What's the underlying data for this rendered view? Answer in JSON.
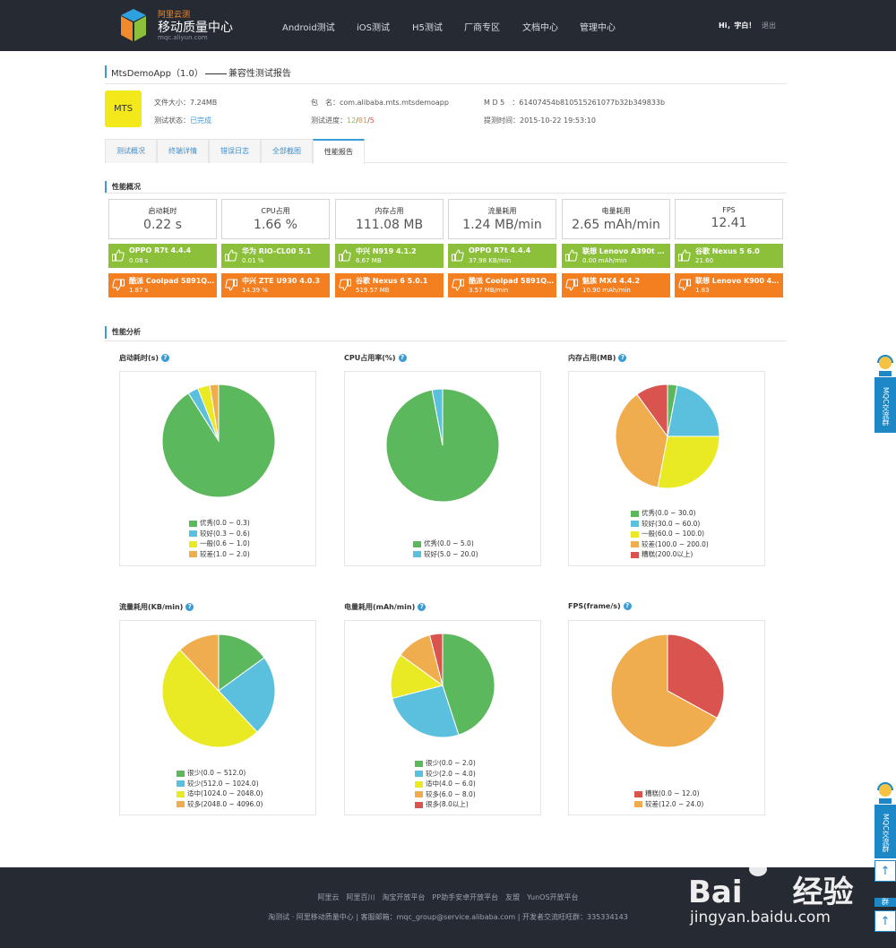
{
  "header": {
    "brand_small": "阿里云测",
    "brand": "移动质量中心",
    "brand_url": "mqc.aliyun.com",
    "nav": [
      "Android测试",
      "iOS测试",
      "H5测试",
      "厂商专区",
      "文档中心",
      "管理中心"
    ],
    "user": "Hi，字白！",
    "logout": "退出"
  },
  "report": {
    "app": "MtsDemoApp（1.0）",
    "suffix": "兼容性测试报告",
    "icon": "MTS",
    "size_label": "文件大小：",
    "size": "7.24MB",
    "status_label": "测试状态：",
    "status": "已完成",
    "pkg_label": "包　名：",
    "pkg": "com.alibaba.mts.mtsdemoapp",
    "progress_label": "测试进度：",
    "progress_a": "12",
    "progress_b": "81",
    "progress_c": "5",
    "slash": "/",
    "md5_label": "M D 5　：",
    "md5": "61407454b810515261077b32b349833b",
    "time_label": "提测时间：",
    "time": "2015-10-22 19:53:10"
  },
  "tabs": [
    "测试概况",
    "终端详情",
    "错误日志",
    "全部截图",
    "性能报告"
  ],
  "sections": {
    "overview": "性能概况",
    "analysis": "性能分析"
  },
  "metrics": [
    {
      "label": "启动耗时",
      "value": "0.22 s",
      "best_device": "OPPO R7t 4.4.4",
      "best_value": "0.08 s",
      "worst_device": "酷派 Coolpad 5891Q ...",
      "worst_value": "1.87 s"
    },
    {
      "label": "CPU占用",
      "value": "1.66 %",
      "best_device": "华为 RIO-CL00 5.1",
      "best_value": "0.01 %",
      "worst_device": "中兴 ZTE U930 4.0.3",
      "worst_value": "14.39 %"
    },
    {
      "label": "内存占用",
      "value": "111.08 MB",
      "best_device": "中兴 N919 4.1.2",
      "best_value": "6.67 MB",
      "worst_device": "谷歌 Nexus 6 5.0.1",
      "worst_value": "519.57 MB"
    },
    {
      "label": "流量耗用",
      "value": "1.24 MB/min",
      "best_device": "OPPO R7t 4.4.4",
      "best_value": "37.98 KB/min",
      "worst_device": "酷派 Coolpad 5891Q ...",
      "worst_value": "3.57 MB/min"
    },
    {
      "label": "电量耗用",
      "value": "2.65 mAh/min",
      "best_device": "联想 Lenovo A390t 4....",
      "best_value": "0.00 mAh/min",
      "worst_device": "魅族 MX4 4.4.2",
      "worst_value": "10.90 mAh/min"
    },
    {
      "label": "FPS",
      "value": "12.41",
      "best_device": "谷歌 Nexus 5 6.0",
      "best_value": "21.60",
      "worst_device": "联想 Lenovo K900 4.2.2",
      "worst_value": "1.83"
    }
  ],
  "colors": {
    "green": "#5cb85c",
    "blue": "#5bc0de",
    "yellow": "#eaea24",
    "orange": "#f0ad4e",
    "red": "#d9534f"
  },
  "chart_data": [
    {
      "type": "pie",
      "title": "启动耗时(s)",
      "slices": [
        {
          "label": "优秀(0.0 ~ 0.3)",
          "value": 91,
          "color": "#5cb85c"
        },
        {
          "label": "较好(0.3 ~ 0.6)",
          "value": 3,
          "color": "#5bc0de"
        },
        {
          "label": "一般(0.6 ~ 1.0)",
          "value": 3.5,
          "color": "#eaea24"
        },
        {
          "label": "较差(1.0 ~ 2.0)",
          "value": 2.5,
          "color": "#f0ad4e"
        }
      ]
    },
    {
      "type": "pie",
      "title": "CPU占用率(%)",
      "slices": [
        {
          "label": "优秀(0.0 ~ 5.0)",
          "value": 97,
          "color": "#5cb85c"
        },
        {
          "label": "较好(5.0 ~ 20.0)",
          "value": 3,
          "color": "#5bc0de"
        }
      ]
    },
    {
      "type": "pie",
      "title": "内存占用(MB)",
      "slices": [
        {
          "label": "优秀(0.0 ~ 30.0)",
          "value": 3,
          "color": "#5cb85c"
        },
        {
          "label": "较好(30.0 ~ 60.0)",
          "value": 22,
          "color": "#5bc0de"
        },
        {
          "label": "一般(60.0 ~ 100.0)",
          "value": 28,
          "color": "#eaea24"
        },
        {
          "label": "较差(100.0 ~ 200.0)",
          "value": 37,
          "color": "#f0ad4e"
        },
        {
          "label": "糟糕(200.0以上)",
          "value": 10,
          "color": "#d9534f"
        }
      ]
    },
    {
      "type": "pie",
      "title": "流量耗用(KB/min)",
      "slices": [
        {
          "label": "很少(0.0 ~ 512.0)",
          "value": 15,
          "color": "#5cb85c"
        },
        {
          "label": "较少(512.0 ~ 1024.0)",
          "value": 23,
          "color": "#5bc0de"
        },
        {
          "label": "适中(1024.0 ~ 2048.0)",
          "value": 50,
          "color": "#eaea24"
        },
        {
          "label": "较多(2048.0 ~ 4096.0)",
          "value": 12,
          "color": "#f0ad4e"
        }
      ]
    },
    {
      "type": "pie",
      "title": "电量耗用(mAh/min)",
      "slices": [
        {
          "label": "很少(0.0 ~ 2.0)",
          "value": 45,
          "color": "#5cb85c"
        },
        {
          "label": "较少(2.0 ~ 4.0)",
          "value": 26,
          "color": "#5bc0de"
        },
        {
          "label": "适中(4.0 ~ 6.0)",
          "value": 14,
          "color": "#eaea24"
        },
        {
          "label": "较多(6.0 ~ 8.0)",
          "value": 11,
          "color": "#f0ad4e"
        },
        {
          "label": "很多(8.0以上)",
          "value": 4,
          "color": "#d9534f"
        }
      ]
    },
    {
      "type": "pie",
      "title": "FPS(frame/s)",
      "slices": [
        {
          "label": "糟糕(0.0 ~ 12.0)",
          "value": 33,
          "color": "#d9534f"
        },
        {
          "label": "较差(12.0 ~ 24.0)",
          "value": 67,
          "color": "#f0ad4e"
        }
      ]
    }
  ],
  "help_icon": "?",
  "footer": {
    "links": "阿里云　阿里百川　淘宝开放平台　PP助手安卓开放平台　友盟　YunOS开放平台",
    "copy": "淘测试 · 阿里移动质量中心 | 客服邮箱：mqc_group@service.alibaba.com | 开发者交流旺旺群：335334143"
  },
  "float": {
    "label": "MQC交流群",
    "top_arrow": "↑",
    "short": "群"
  },
  "watermark": {
    "brand": "Bai",
    "brand2": "经验",
    "url": "jingyan.baidu.com"
  }
}
